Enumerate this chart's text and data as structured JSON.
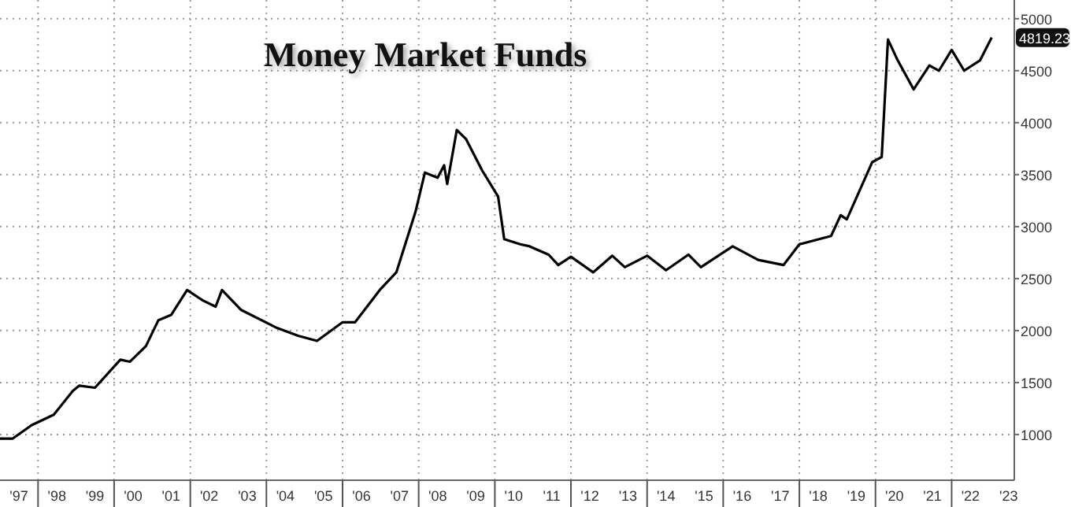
{
  "chart_data": {
    "type": "line",
    "title": "Money Market Funds",
    "x": [
      "1997-01",
      "1997-05",
      "1997-11",
      "1998-06",
      "1998-12",
      "1999-02",
      "1999-07",
      "2000-03",
      "2000-06",
      "2000-11",
      "2001-03",
      "2001-07",
      "2001-12",
      "2002-05",
      "2002-09",
      "2002-11",
      "2003-05",
      "2004-04",
      "2004-11",
      "2005-05",
      "2006-01",
      "2006-05",
      "2007-01",
      "2007-06",
      "2007-12",
      "2008-03",
      "2008-07",
      "2008-09",
      "2008-10",
      "2009-01",
      "2009-04",
      "2009-09",
      "2010-02",
      "2010-04",
      "2010-09",
      "2010-12",
      "2011-06",
      "2011-09",
      "2012-01",
      "2012-08",
      "2013-02",
      "2013-06",
      "2014-01",
      "2014-07",
      "2015-02",
      "2015-06",
      "2016-04",
      "2016-12",
      "2017-08",
      "2018-01",
      "2018-11",
      "2019-02",
      "2019-04",
      "2019-12",
      "2020-03-01",
      "2020-04-30",
      "2020-08",
      "2021-01",
      "2021-06",
      "2021-09",
      "2022-01",
      "2022-05",
      "2022-10",
      "2023-01-20"
    ],
    "series": [
      {
        "color": "#000000",
        "values": [
          960,
          960,
          1090,
          1190,
          1420,
          1470,
          1450,
          1720,
          1700,
          1850,
          2100,
          2150,
          2390,
          2290,
          2230,
          2390,
          2200,
          2030,
          1950,
          1900,
          2080,
          2080,
          2400,
          2560,
          3140,
          3520,
          3470,
          3590,
          3410,
          3930,
          3840,
          3540,
          3290,
          2880,
          2830,
          2810,
          2730,
          2630,
          2710,
          2560,
          2720,
          2610,
          2720,
          2580,
          2730,
          2610,
          2810,
          2680,
          2630,
          2830,
          2910,
          3110,
          3070,
          3620,
          3670,
          4800,
          4600,
          4320,
          4550,
          4500,
          4700,
          4500,
          4600,
          4819.23
        ]
      }
    ],
    "xlim": [
      "1997-01-01",
      "2023-08-25"
    ],
    "ylim": [
      560,
      5180
    ],
    "yticks": [
      1000,
      1500,
      2000,
      2500,
      3000,
      3500,
      4000,
      4500,
      5000
    ],
    "xticks": [
      {
        "value": "1997-07",
        "label": "'97"
      },
      {
        "value": "1998-07",
        "label": "'98"
      },
      {
        "value": "1999-07",
        "label": "'99"
      },
      {
        "value": "2000-07",
        "label": "'00"
      },
      {
        "value": "2001-07",
        "label": "'01"
      },
      {
        "value": "2002-07",
        "label": "'02"
      },
      {
        "value": "2003-07",
        "label": "'03"
      },
      {
        "value": "2004-07",
        "label": "'04"
      },
      {
        "value": "2005-07",
        "label": "'05"
      },
      {
        "value": "2006-07",
        "label": "'06"
      },
      {
        "value": "2007-07",
        "label": "'07"
      },
      {
        "value": "2008-07",
        "label": "'08"
      },
      {
        "value": "2009-07",
        "label": "'09"
      },
      {
        "value": "2010-07",
        "label": "'10"
      },
      {
        "value": "2011-07",
        "label": "'11"
      },
      {
        "value": "2012-07",
        "label": "'12"
      },
      {
        "value": "2013-07",
        "label": "'13"
      },
      {
        "value": "2014-07",
        "label": "'14"
      },
      {
        "value": "2015-07",
        "label": "'15"
      },
      {
        "value": "2016-07",
        "label": "'16"
      },
      {
        "value": "2017-07",
        "label": "'17"
      },
      {
        "value": "2018-07",
        "label": "'18"
      },
      {
        "value": "2019-07",
        "label": "'19"
      },
      {
        "value": "2020-07",
        "label": "'20"
      },
      {
        "value": "2021-07",
        "label": "'21"
      },
      {
        "value": "2022-07",
        "label": "'22"
      },
      {
        "value": "2023-07",
        "label": "'23"
      },
      {
        "value": "1998-01",
        "label": null
      },
      {
        "value": "2000-01",
        "label": null
      },
      {
        "value": "2002-01",
        "label": null
      },
      {
        "value": "2004-01",
        "label": null
      },
      {
        "value": "2006-01",
        "label": null
      },
      {
        "value": "2008-01",
        "label": null
      },
      {
        "value": "2010-01",
        "label": null
      },
      {
        "value": "2012-01",
        "label": null
      },
      {
        "value": "2014-01",
        "label": null
      },
      {
        "value": "2016-01",
        "label": null
      },
      {
        "value": "2018-01",
        "label": null
      },
      {
        "value": "2020-01",
        "label": null
      },
      {
        "value": "2022-01",
        "label": null
      }
    ],
    "annotations": [
      {
        "text": "4819.23",
        "x": "2023-01-20",
        "y": 4819.23
      }
    ],
    "grid": true,
    "line_style": "solid",
    "marker": "none"
  }
}
